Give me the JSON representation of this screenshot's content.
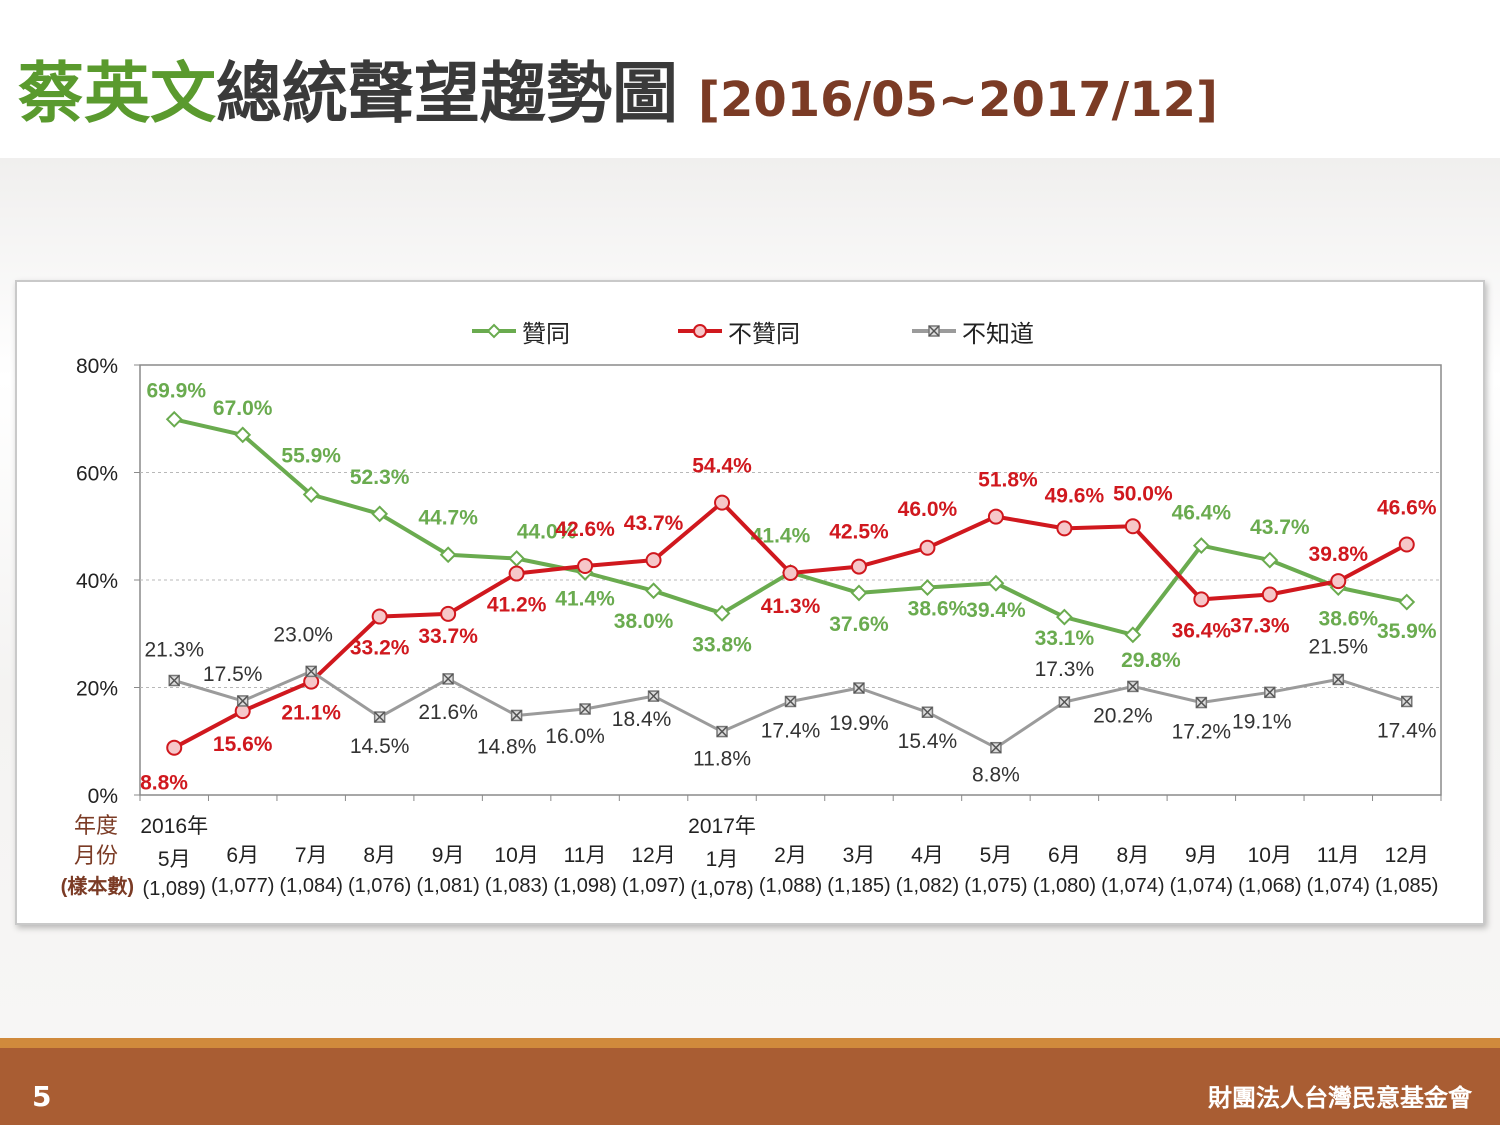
{
  "slide": {
    "title_name": "蔡英文",
    "title_main": "總統聲望趨勢圖",
    "title_range": "[2016/05~2017/12]",
    "page_number": "5",
    "organization": "財團法人台灣民意基金會"
  },
  "legend": {
    "approve": "贊同",
    "disapprove": "不贊同",
    "unknown": "不知道"
  },
  "row_labels": {
    "year": "年度",
    "month": "月份",
    "sample": "(樣本數)"
  },
  "colors": {
    "approve": "#6aab4f",
    "disapprove": "#d0181e",
    "unknown": "#9b9b9b"
  },
  "chart_data": {
    "type": "line",
    "ylim": [
      0,
      80
    ],
    "yticks": [
      "0%",
      "20%",
      "40%",
      "60%",
      "80%"
    ],
    "grid": true,
    "legend_position": "top",
    "years": [
      "2016年",
      "",
      "",
      "",
      "",
      "",
      "",
      "",
      "2017年",
      "",
      "",
      "",
      "",
      "",
      "",
      "",
      "",
      "",
      ""
    ],
    "months": [
      "5月",
      "6月",
      "7月",
      "8月",
      "9月",
      "10月",
      "11月",
      "12月",
      "1月",
      "2月",
      "3月",
      "4月",
      "5月",
      "6月",
      "8月",
      "9月",
      "10月",
      "11月",
      "12月"
    ],
    "samples": [
      "(1,089)",
      "(1,077)",
      "(1,084)",
      "(1,076)",
      "(1,081)",
      "(1,083)",
      "(1,098)",
      "(1,097)",
      "(1,078)",
      "(1,088)",
      "(1,185)",
      "(1,082)",
      "(1,075)",
      "(1,080)",
      "(1,074)",
      "(1,074)",
      "(1,068)",
      "(1,074)",
      "(1,085)"
    ],
    "series": [
      {
        "name": "贊同",
        "values": [
          69.9,
          67.0,
          55.9,
          52.3,
          44.7,
          44.0,
          41.4,
          38.0,
          33.8,
          41.4,
          37.6,
          38.6,
          39.4,
          33.1,
          29.8,
          46.4,
          43.7,
          38.6,
          35.9
        ],
        "labels": [
          "69.9%",
          "67.0%",
          "55.9%",
          "52.3%",
          "44.7%",
          "44.0%",
          "41.4%",
          "38.0%",
          "33.8%",
          "41.4%",
          "37.6%",
          "38.6%",
          "39.4%",
          "33.1%",
          "29.8%",
          "46.4%",
          "43.7%",
          "38.6%",
          "35.9%"
        ]
      },
      {
        "name": "不贊同",
        "values": [
          8.8,
          15.6,
          21.1,
          33.2,
          33.7,
          41.2,
          42.6,
          43.7,
          54.4,
          41.3,
          42.5,
          46.0,
          51.8,
          49.6,
          50.0,
          36.4,
          37.3,
          39.8,
          46.6
        ],
        "labels": [
          "8.8%",
          "15.6%",
          "21.1%",
          "33.2%",
          "33.7%",
          "41.2%",
          "42.6%",
          "43.7%",
          "54.4%",
          "41.3%",
          "42.5%",
          "46.0%",
          "51.8%",
          "49.6%",
          "50.0%",
          "36.4%",
          "37.3%",
          "39.8%",
          "46.6%"
        ]
      },
      {
        "name": "不知道",
        "values": [
          21.3,
          17.5,
          23.0,
          14.5,
          21.6,
          14.8,
          16.0,
          18.4,
          11.8,
          17.4,
          19.9,
          15.4,
          8.8,
          17.3,
          20.2,
          17.2,
          19.1,
          21.5,
          17.4
        ],
        "labels": [
          "21.3%",
          "17.5%",
          "23.0%",
          "14.5%",
          "21.6%",
          "14.8%",
          "16.0%",
          "18.4%",
          "11.8%",
          "17.4%",
          "19.9%",
          "15.4%",
          "8.8%",
          "17.3%",
          "20.2%",
          "17.2%",
          "19.1%",
          "21.5%",
          "17.4%"
        ]
      }
    ]
  }
}
